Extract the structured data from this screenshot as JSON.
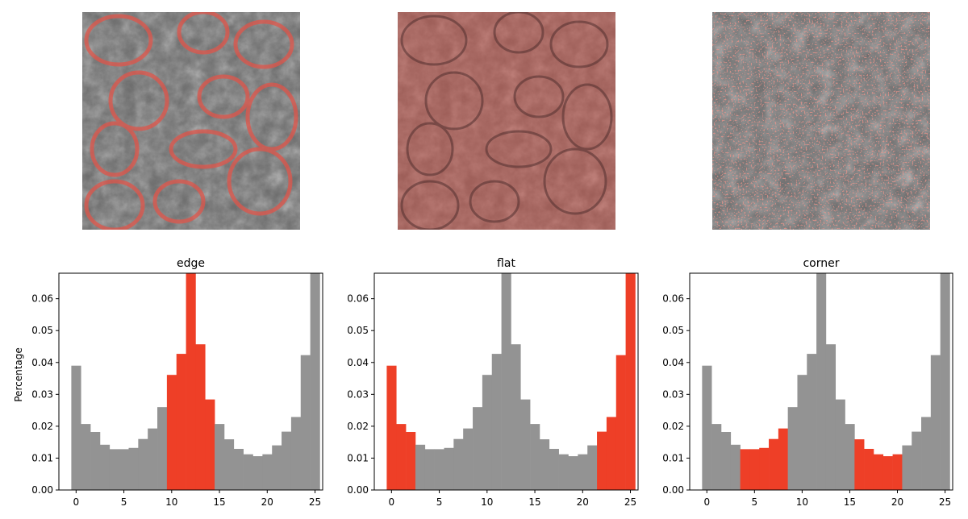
{
  "chart_data": [
    {
      "type": "bar",
      "title": "edge",
      "ylabel": "Percentage",
      "xlabel": "",
      "x_ticks": [
        "0",
        "5",
        "10",
        "15",
        "20",
        "25"
      ],
      "y_ticks": [
        "0.00",
        "0.01",
        "0.02",
        "0.03",
        "0.04",
        "0.05",
        "0.06"
      ],
      "xlim": [
        -1.3,
        26.3
      ],
      "ylim": [
        0,
        0.068
      ],
      "bins": [
        0,
        1,
        2,
        3,
        4,
        5,
        6,
        7,
        8,
        9,
        10,
        11,
        12,
        13,
        14,
        15,
        16,
        17,
        18,
        19,
        20,
        21,
        22,
        23,
        24,
        25
      ],
      "values": [
        0.039,
        0.0207,
        0.0182,
        0.0142,
        0.0128,
        0.0128,
        0.0132,
        0.016,
        0.0193,
        0.026,
        0.0361,
        0.0427,
        0.0708,
        0.0457,
        0.0284,
        0.0207,
        0.0159,
        0.0129,
        0.0112,
        0.0106,
        0.0112,
        0.014,
        0.0183,
        0.0229,
        0.0423,
        0.0708
      ],
      "highlight_range": [
        10,
        15
      ],
      "colors": {
        "base": "#939393",
        "highlight": "#ee3f27"
      }
    },
    {
      "type": "bar",
      "title": "flat",
      "ylabel": "",
      "xlabel": "",
      "x_ticks": [
        "0",
        "5",
        "10",
        "15",
        "20",
        "25"
      ],
      "y_ticks": [
        "0.00",
        "0.01",
        "0.02",
        "0.03",
        "0.04",
        "0.05",
        "0.06"
      ],
      "xlim": [
        -1.3,
        26.3
      ],
      "ylim": [
        0,
        0.068
      ],
      "bins": [
        0,
        1,
        2,
        3,
        4,
        5,
        6,
        7,
        8,
        9,
        10,
        11,
        12,
        13,
        14,
        15,
        16,
        17,
        18,
        19,
        20,
        21,
        22,
        23,
        24,
        25
      ],
      "values": [
        0.039,
        0.0207,
        0.0182,
        0.0142,
        0.0128,
        0.0128,
        0.0132,
        0.016,
        0.0193,
        0.026,
        0.0361,
        0.0427,
        0.0708,
        0.0457,
        0.0284,
        0.0207,
        0.0159,
        0.0129,
        0.0112,
        0.0106,
        0.0112,
        0.014,
        0.0183,
        0.0229,
        0.0423,
        0.0708
      ],
      "highlight_ranges": [
        [
          0,
          3
        ],
        [
          22,
          26
        ]
      ],
      "colors": {
        "base": "#939393",
        "highlight": "#ee3f27"
      }
    },
    {
      "type": "bar",
      "title": "corner",
      "ylabel": "",
      "xlabel": "",
      "x_ticks": [
        "0",
        "5",
        "10",
        "15",
        "20",
        "25"
      ],
      "y_ticks": [
        "0.00",
        "0.01",
        "0.02",
        "0.03",
        "0.04",
        "0.05",
        "0.06"
      ],
      "xlim": [
        -1.3,
        26.3
      ],
      "ylim": [
        0,
        0.068
      ],
      "bins": [
        0,
        1,
        2,
        3,
        4,
        5,
        6,
        7,
        8,
        9,
        10,
        11,
        12,
        13,
        14,
        15,
        16,
        17,
        18,
        19,
        20,
        21,
        22,
        23,
        24,
        25
      ],
      "values": [
        0.039,
        0.0207,
        0.0182,
        0.0142,
        0.0128,
        0.0128,
        0.0132,
        0.016,
        0.0193,
        0.026,
        0.0361,
        0.0427,
        0.0708,
        0.0457,
        0.0284,
        0.0207,
        0.0159,
        0.0129,
        0.0112,
        0.0106,
        0.0112,
        0.014,
        0.0183,
        0.0229,
        0.0423,
        0.0708
      ],
      "highlight_ranges": [
        [
          4,
          9
        ],
        [
          16,
          21
        ]
      ],
      "colors": {
        "base": "#939393",
        "highlight": "#ee3f27"
      }
    }
  ],
  "images": [
    {
      "subject": "fruit-texture-grayscale",
      "overlay": "edge"
    },
    {
      "subject": "fruit-texture-grayscale",
      "overlay": "flat"
    },
    {
      "subject": "fruit-texture-grayscale",
      "overlay": "corner"
    }
  ]
}
